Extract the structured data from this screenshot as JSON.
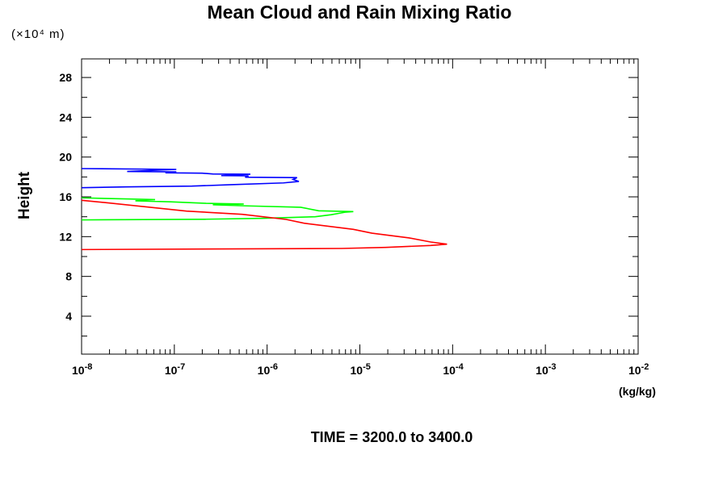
{
  "chart_data": {
    "type": "line",
    "title": "Mean Cloud and Rain Mixing Ratio",
    "ylabel": "Height",
    "yunit": "(×10⁴ m)",
    "xunit": "(kg/kg)",
    "subtitle": "TIME = 3200.0 to 3400.0",
    "xscale": "log",
    "xlim": [
      1e-08,
      0.01
    ],
    "ylim": [
      0,
      30
    ],
    "xticks": [
      {
        "base": "10",
        "exp": "-8"
      },
      {
        "base": "10",
        "exp": "-7"
      },
      {
        "base": "10",
        "exp": "-6"
      },
      {
        "base": "10",
        "exp": "-5"
      },
      {
        "base": "10",
        "exp": "-4"
      },
      {
        "base": "10",
        "exp": "-3"
      },
      {
        "base": "10",
        "exp": "-2"
      }
    ],
    "yticks": [
      "4",
      "8",
      "12",
      "16",
      "20",
      "24",
      "28"
    ],
    "grid": false,
    "series": [
      {
        "color": "#0000ff",
        "points": [
          [
            1e-08,
            18.84
          ],
          [
            1.05e-07,
            18.76
          ],
          [
            3.1e-08,
            18.55
          ],
          [
            1.05e-07,
            18.51
          ],
          [
            8e-08,
            18.42
          ],
          [
            2e-07,
            18.38
          ],
          [
            2.6e-07,
            18.3
          ],
          [
            6.6e-07,
            18.28
          ],
          [
            3.2e-07,
            18.13
          ],
          [
            6.3e-07,
            18.11
          ],
          [
            5.8e-07,
            17.97
          ],
          [
            2.1e-06,
            17.93
          ],
          [
            1.9e-06,
            17.75
          ],
          [
            2.2e-06,
            17.55
          ],
          [
            1.5e-06,
            17.4
          ],
          [
            4.1e-07,
            17.22
          ],
          [
            1.55e-07,
            17.08
          ],
          [
            3e-08,
            17.0
          ],
          [
            1e-08,
            16.92
          ]
        ]
      },
      {
        "color": "#00ff00",
        "points": [
          [
            1e-08,
            15.9
          ],
          [
            3.3e-08,
            15.78
          ],
          [
            6.2e-08,
            15.72
          ],
          [
            3.8e-08,
            15.6
          ],
          [
            9.1e-08,
            15.5
          ],
          [
            2.2e-07,
            15.35
          ],
          [
            5.6e-07,
            15.28
          ],
          [
            2.6e-07,
            15.2
          ],
          [
            5.6e-07,
            15.1
          ],
          [
            2.3e-06,
            14.95
          ],
          [
            3.6e-06,
            14.6
          ],
          [
            8.5e-06,
            14.52
          ],
          [
            6.9e-06,
            14.45
          ],
          [
            4.9e-06,
            14.2
          ],
          [
            3.3e-06,
            14.0
          ],
          [
            8.5e-07,
            13.84
          ],
          [
            2.2e-07,
            13.75
          ],
          [
            1e-08,
            13.68
          ]
        ]
      },
      {
        "color": "#ff0000",
        "points": [
          [
            1e-08,
            15.65
          ],
          [
            2e-08,
            15.38
          ],
          [
            5.2e-08,
            14.97
          ],
          [
            1.35e-07,
            14.57
          ],
          [
            5.4e-07,
            14.24
          ],
          [
            1.6e-06,
            13.73
          ],
          [
            2.5e-06,
            13.35
          ],
          [
            8.5e-06,
            12.73
          ],
          [
            1.35e-05,
            12.35
          ],
          [
            3.4e-05,
            11.87
          ],
          [
            5.8e-05,
            11.46
          ],
          [
            8.7e-05,
            11.24
          ],
          [
            5.8e-05,
            11.11
          ],
          [
            1.9e-05,
            10.92
          ],
          [
            6.3e-06,
            10.81
          ],
          [
            1e-08,
            10.7
          ]
        ]
      }
    ]
  }
}
